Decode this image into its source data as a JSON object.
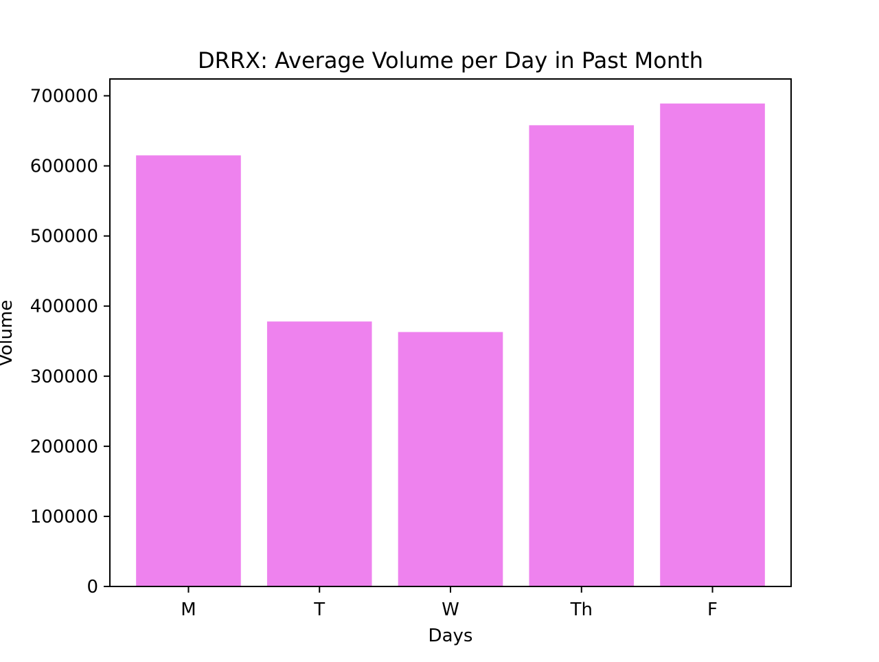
{
  "chart_data": {
    "type": "bar",
    "title": "DRRX: Average Volume per Day in Past Month",
    "xlabel": "Days",
    "ylabel": "Volume",
    "categories": [
      "M",
      "T",
      "W",
      "Th",
      "F"
    ],
    "values": [
      615000,
      378000,
      363000,
      658000,
      689000
    ],
    "ylim": [
      0,
      724000
    ],
    "yticks": [
      0,
      100000,
      200000,
      300000,
      400000,
      500000,
      600000,
      700000
    ],
    "ytick_labels": [
      "0",
      "100000",
      "200000",
      "300000",
      "400000",
      "500000",
      "600000",
      "700000"
    ],
    "bar_color": "#ee82ee",
    "grid": false,
    "legend": "none"
  }
}
